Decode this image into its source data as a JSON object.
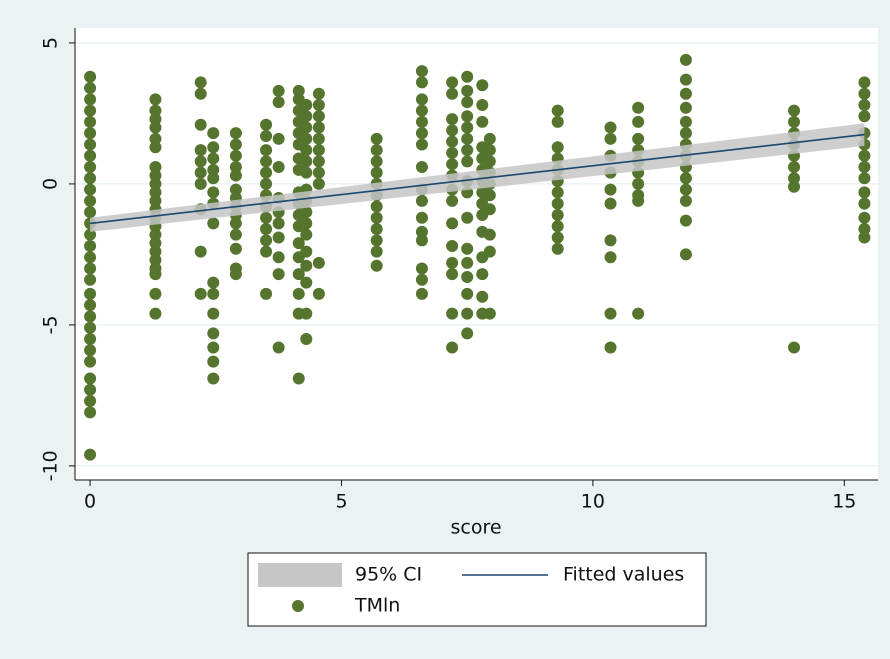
{
  "chart_data": {
    "type": "scatter",
    "x_label": "score",
    "xlim": [
      -0.3,
      15.67
    ],
    "xticks": [
      0,
      5,
      10,
      15
    ],
    "ylim": [
      -10.5,
      5.53
    ],
    "yticks": [
      -10,
      -5,
      0,
      5
    ],
    "grid": true,
    "series": [
      {
        "name": "95% CI",
        "color": "#c6c6c6",
        "x": [
          0,
          15.4
        ],
        "lower": [
          -1.7,
          1.35
        ],
        "upper": [
          -1.2,
          2.15
        ]
      },
      {
        "name": "Fitted values",
        "color": "#1a476f",
        "x": [
          0,
          15.4
        ],
        "values": [
          -1.4,
          1.75
        ]
      },
      {
        "name": "TMln",
        "color": "#55752f",
        "x": [
          0,
          0,
          0,
          0,
          0,
          0,
          0,
          0,
          0,
          0,
          0,
          0,
          0,
          0,
          0,
          0,
          0,
          0,
          0,
          0,
          0,
          0,
          0,
          0,
          0,
          0,
          0,
          0,
          0,
          0,
          0,
          1.3,
          1.3,
          1.3,
          1.3,
          1.3,
          1.3,
          1.3,
          1.3,
          1.3,
          1.3,
          1.3,
          1.3,
          1.3,
          1.3,
          1.3,
          1.3,
          1.3,
          1.3,
          1.3,
          1.3,
          1.3,
          1.3,
          2.2,
          2.2,
          2.2,
          2.2,
          2.2,
          2.2,
          2.2,
          2.2,
          2.2,
          2.2,
          2.45,
          2.45,
          2.45,
          2.45,
          2.45,
          2.45,
          2.45,
          2.45,
          2.45,
          2.45,
          2.45,
          2.45,
          2.45,
          2.45,
          2.45,
          2.9,
          2.9,
          2.9,
          2.9,
          2.9,
          2.9,
          2.9,
          2.9,
          2.9,
          2.9,
          2.9,
          2.9,
          2.9,
          2.9,
          3.5,
          3.5,
          3.5,
          3.5,
          3.5,
          3.5,
          3.5,
          3.5,
          3.5,
          3.5,
          3.5,
          3.5,
          3.5,
          3.75,
          3.75,
          3.75,
          3.75,
          3.75,
          3.75,
          3.75,
          3.75,
          3.75,
          3.75,
          3.75,
          4.15,
          4.15,
          4.15,
          4.15,
          4.15,
          4.15,
          4.15,
          4.15,
          4.15,
          4.15,
          4.15,
          4.15,
          4.15,
          4.15,
          4.15,
          4.15,
          4.15,
          4.15,
          4.3,
          4.3,
          4.3,
          4.3,
          4.3,
          4.3,
          4.3,
          4.3,
          4.3,
          4.3,
          4.3,
          4.3,
          4.3,
          4.3,
          4.3,
          4.3,
          4.3,
          4.55,
          4.55,
          4.55,
          4.55,
          4.55,
          4.55,
          4.55,
          4.55,
          4.55,
          4.55,
          4.55,
          5.7,
          5.7,
          5.7,
          5.7,
          5.7,
          5.7,
          5.7,
          5.7,
          5.7,
          5.7,
          5.7,
          5.7,
          6.6,
          6.6,
          6.6,
          6.6,
          6.6,
          6.6,
          6.6,
          6.6,
          6.6,
          6.6,
          6.6,
          6.6,
          6.6,
          6.6,
          6.6,
          6.6,
          7.2,
          7.2,
          7.2,
          7.2,
          7.2,
          7.2,
          7.2,
          7.2,
          7.2,
          7.2,
          7.2,
          7.2,
          7.2,
          7.2,
          7.2,
          7.2,
          7.5,
          7.5,
          7.5,
          7.5,
          7.5,
          7.5,
          7.5,
          7.5,
          7.5,
          7.5,
          7.5,
          7.5,
          7.5,
          7.5,
          7.5,
          7.5,
          7.5,
          7.8,
          7.8,
          7.8,
          7.8,
          7.8,
          7.8,
          7.8,
          7.8,
          7.8,
          7.8,
          7.8,
          7.8,
          7.8,
          7.8,
          7.8,
          7.95,
          7.95,
          7.95,
          7.95,
          7.95,
          7.95,
          7.95,
          7.95,
          7.95,
          7.95,
          9.3,
          9.3,
          9.3,
          9.3,
          9.3,
          9.3,
          9.3,
          9.3,
          9.3,
          9.3,
          9.3,
          9.3,
          10.35,
          10.35,
          10.35,
          10.35,
          10.35,
          10.35,
          10.35,
          10.35,
          10.35,
          10.35,
          10.9,
          10.9,
          10.9,
          10.9,
          10.9,
          10.9,
          10.9,
          10.9,
          10.9,
          10.9,
          11.85,
          11.85,
          11.85,
          11.85,
          11.85,
          11.85,
          11.85,
          11.85,
          11.85,
          11.85,
          11.85,
          11.85,
          11.85,
          11.85,
          14,
          14,
          14,
          14,
          14,
          14,
          14,
          14,
          14,
          15.4,
          15.4,
          15.4,
          15.4,
          15.4,
          15.4,
          15.4,
          15.4,
          15.4,
          15.4,
          15.4,
          15.4,
          15.4,
          15.4
        ],
        "values": [
          3.8,
          3.4,
          3.0,
          2.6,
          2.2,
          1.8,
          1.4,
          1.0,
          0.6,
          0.2,
          -0.2,
          -0.6,
          -1.0,
          -1.4,
          -1.8,
          -2.2,
          -2.6,
          -3.0,
          -3.4,
          -3.9,
          -4.3,
          -4.7,
          -5.1,
          -5.5,
          -5.9,
          -6.3,
          -6.9,
          -7.3,
          -7.7,
          -8.1,
          -9.6,
          3.0,
          2.6,
          2.3,
          2.0,
          1.6,
          1.3,
          0.6,
          0.3,
          0,
          -0.3,
          -0.6,
          -0.9,
          -1.2,
          -1.5,
          -1.8,
          -2.1,
          -2.4,
          -2.7,
          -3.0,
          -3.2,
          -3.9,
          -4.6,
          3.6,
          3.2,
          2.1,
          1.2,
          0.8,
          0.4,
          0,
          -0.9,
          -2.4,
          -3.9,
          1.8,
          1.3,
          0.9,
          0.5,
          0.2,
          -0.3,
          -0.7,
          -1.4,
          -3.5,
          -3.9,
          -4.6,
          -5.3,
          -5.8,
          -6.3,
          -6.9,
          1.8,
          1.4,
          1.0,
          0.6,
          0.3,
          -0.2,
          -0.5,
          -0.8,
          -1.1,
          -1.4,
          -1.8,
          -2.3,
          -3.0,
          -3.2,
          2.1,
          1.7,
          1.2,
          0.8,
          0.4,
          0,
          -0.4,
          -0.8,
          -1.2,
          -1.6,
          -2.0,
          -2.4,
          -3.9,
          3.3,
          2.9,
          1.6,
          0.6,
          -0.5,
          -1.0,
          -1.4,
          -1.9,
          -2.6,
          -3.2,
          -5.8,
          3.3,
          3.0,
          2.6,
          2.2,
          1.8,
          1.4,
          0.9,
          0.5,
          -0.3,
          -0.7,
          -1.1,
          -1.5,
          -2.1,
          -2.6,
          -3.2,
          -3.9,
          -4.6,
          -6.9,
          2.8,
          2.4,
          2.0,
          1.6,
          1.2,
          0.8,
          0.4,
          -0.2,
          -0.6,
          -1.0,
          -1.4,
          -1.8,
          -2.4,
          -2.9,
          -3.5,
          -4.6,
          -5.5,
          3.2,
          2.8,
          2.4,
          2.0,
          1.6,
          1.2,
          0.8,
          0.4,
          0,
          -2.8,
          -3.9,
          1.6,
          1.2,
          0.8,
          0.4,
          0,
          -0.4,
          -0.8,
          -1.2,
          -1.6,
          -2.0,
          -2.4,
          -2.9,
          4.0,
          3.6,
          3.0,
          2.6,
          2.2,
          1.8,
          1.4,
          0.6,
          -0.2,
          -0.6,
          -1.2,
          -1.7,
          -2.0,
          -3.0,
          -3.4,
          -3.9,
          3.6,
          3.2,
          2.3,
          1.9,
          1.5,
          1.1,
          0.7,
          0.3,
          -0.2,
          -0.6,
          -1.4,
          -2.2,
          -2.8,
          -3.2,
          -4.6,
          -5.8,
          3.8,
          3.3,
          2.9,
          2.4,
          2.0,
          1.6,
          1.2,
          0.8,
          0.1,
          -0.3,
          -1.2,
          -2.3,
          -2.8,
          -3.3,
          -3.9,
          -4.6,
          -5.3,
          3.5,
          2.8,
          2.2,
          1.3,
          0.9,
          0.5,
          0.1,
          -0.3,
          -0.7,
          -1.1,
          -1.7,
          -2.6,
          -3.2,
          -4.0,
          -4.6,
          1.6,
          1.2,
          0.8,
          0.4,
          0,
          -0.4,
          -0.9,
          -1.8,
          -2.4,
          -4.6,
          2.6,
          2.2,
          1.3,
          0.9,
          0.5,
          0.1,
          -0.3,
          -0.7,
          -1.1,
          -1.5,
          -1.9,
          -2.3,
          2.0,
          1.6,
          1.0,
          0.4,
          -0.2,
          -0.7,
          -2.0,
          -2.6,
          -4.6,
          -5.8,
          2.7,
          2.2,
          1.6,
          1.2,
          0.8,
          0.4,
          0,
          -0.4,
          -0.6,
          -4.6,
          4.4,
          3.7,
          3.2,
          2.7,
          2.2,
          1.8,
          1.4,
          1.0,
          0.6,
          0.2,
          -0.2,
          -0.6,
          -1.3,
          -2.5,
          2.6,
          2.2,
          1.8,
          1.4,
          1.0,
          0.6,
          0.2,
          -0.1,
          -5.8,
          3.6,
          3.2,
          2.8,
          2.4,
          1.8,
          1.4,
          1.0,
          0.6,
          0.2,
          -0.3,
          -0.7,
          -1.2,
          -1.6,
          -1.9
        ]
      }
    ]
  }
}
